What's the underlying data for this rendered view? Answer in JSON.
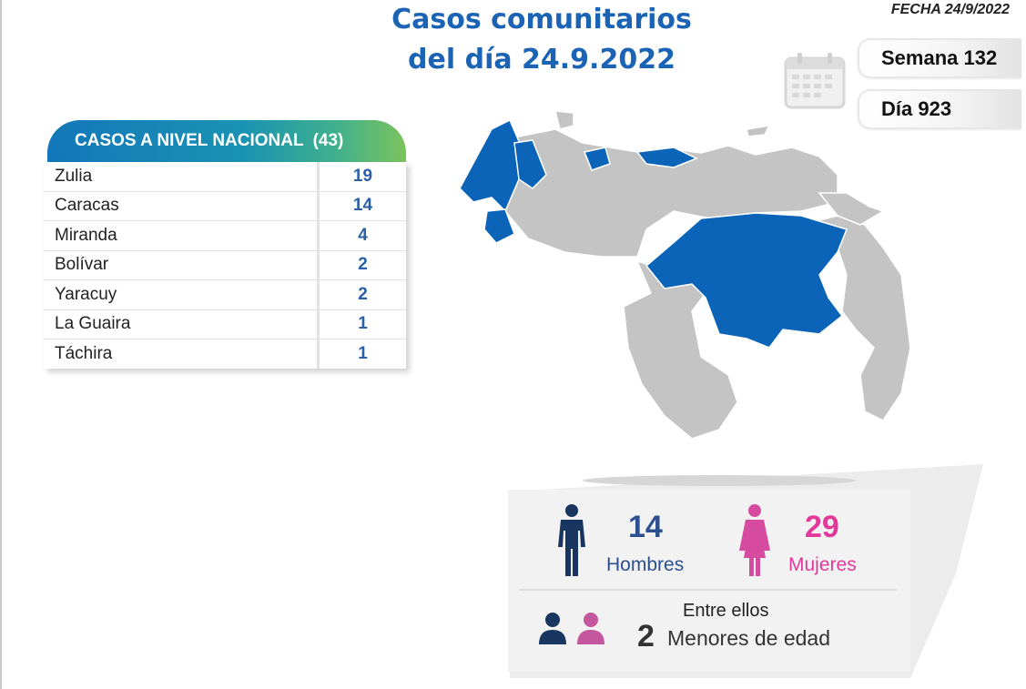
{
  "header": {
    "title_line1": "Casos comunitarios",
    "title_line2": "del día 24.9.2022",
    "fecha": "FECHA 24/9/2022",
    "semana": "Semana 132",
    "dia": "Día 923"
  },
  "table": {
    "title": "CASOS A NIVEL NACIONAL",
    "total": "(43)",
    "rows": [
      {
        "state": "Zulia",
        "cases": "19"
      },
      {
        "state": "Caracas",
        "cases": "14"
      },
      {
        "state": "Miranda",
        "cases": "4"
      },
      {
        "state": "Bolívar",
        "cases": "2"
      },
      {
        "state": "Yaracuy",
        "cases": "2"
      },
      {
        "state": "La Guaira",
        "cases": "1"
      },
      {
        "state": "Táchira",
        "cases": "1"
      }
    ]
  },
  "map": {
    "highlight_color": "#0b64b8",
    "base_color": "#c4c4c4"
  },
  "summary": {
    "men_count": "14",
    "men_label": "Hombres",
    "women_count": "29",
    "women_label": "Mujeres",
    "among_label": "Entre ellos",
    "minors_count": "2",
    "minors_label": "Menores de edad",
    "men_color": "#2c4f8f",
    "women_color": "#e0399a"
  }
}
